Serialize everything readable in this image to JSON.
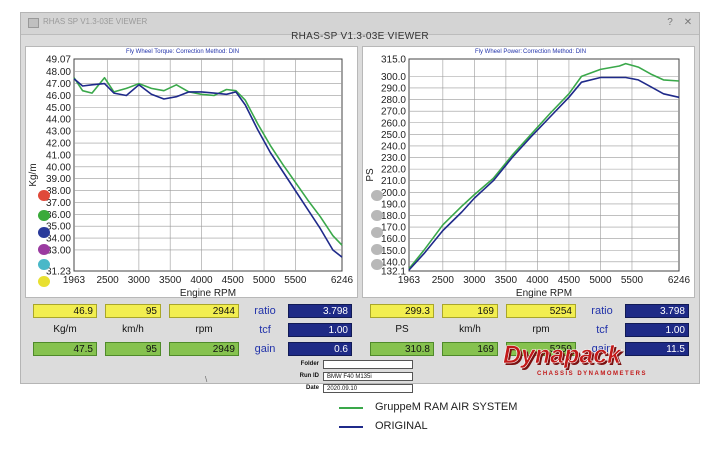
{
  "window": {
    "small_title": "RHAS SP V1.3-03E VIEWER",
    "title": "RHAS-SP V1.3-03E VIEWER",
    "controls": [
      "?",
      "✕"
    ]
  },
  "torque_chart": {
    "subtitle_left": "Fly Wheel Torque:",
    "subtitle_right": "Correction Method: DIN"
  },
  "power_chart": {
    "subtitle_left": "Fly Wheel Power:",
    "subtitle_right": "Correction Method: DIN"
  },
  "chart_data": [
    {
      "type": "line",
      "ylabel": "Kg/m",
      "xlabel": "Engine RPM",
      "xlim": [
        1963,
        6246
      ],
      "ylim": [
        31.23,
        49.07
      ],
      "x_ticks": [
        "1963",
        "2500",
        "3000",
        "3500",
        "4000",
        "4500",
        "5000",
        "5500",
        "6246"
      ],
      "y_ticks": [
        "49.07",
        "48.00",
        "47.00",
        "46.00",
        "45.00",
        "44.00",
        "43.00",
        "42.00",
        "41.00",
        "40.00",
        "39.00",
        "38.00",
        "37.00",
        "36.00",
        "35.00",
        "34.00",
        "33.00",
        "31.23"
      ],
      "grid": true,
      "series": [
        {
          "name": "GruppeM RAM AIR SYSTEM",
          "color": "#3aa84a",
          "x": [
            1963,
            2100,
            2250,
            2450,
            2600,
            2800,
            3000,
            3200,
            3400,
            3600,
            3800,
            4000,
            4200,
            4400,
            4550,
            4700,
            4900,
            5100,
            5300,
            5500,
            5700,
            5900,
            6100,
            6246
          ],
          "y": [
            47.5,
            46.4,
            46.2,
            47.5,
            46.3,
            46.6,
            47.0,
            46.6,
            46.4,
            46.9,
            46.3,
            46.1,
            46.0,
            46.5,
            46.4,
            45.6,
            43.6,
            41.8,
            40.2,
            38.7,
            37.2,
            35.8,
            34.2,
            33.4
          ]
        },
        {
          "name": "ORIGINAL",
          "color": "#1f2a8a",
          "x": [
            1963,
            2100,
            2250,
            2450,
            2600,
            2800,
            3000,
            3200,
            3400,
            3600,
            3800,
            4000,
            4200,
            4400,
            4550,
            4700,
            4900,
            5100,
            5300,
            5500,
            5700,
            5900,
            6100,
            6246
          ],
          "y": [
            47.4,
            46.8,
            46.9,
            47.0,
            46.2,
            46.0,
            46.9,
            46.1,
            45.7,
            45.9,
            46.3,
            46.3,
            46.2,
            46.1,
            46.3,
            45.2,
            43.1,
            41.2,
            39.6,
            38.0,
            36.4,
            34.8,
            33.0,
            32.4
          ]
        }
      ]
    },
    {
      "type": "line",
      "ylabel": "PS",
      "xlabel": "Engine RPM",
      "xlim": [
        1963,
        6246
      ],
      "ylim": [
        132.1,
        315.0
      ],
      "x_ticks": [
        "1963",
        "2500",
        "3000",
        "3500",
        "4000",
        "4500",
        "5000",
        "5500",
        "6246"
      ],
      "y_ticks": [
        "315.0",
        "300.0",
        "290.0",
        "280.0",
        "270.0",
        "260.0",
        "250.0",
        "240.0",
        "230.0",
        "220.0",
        "210.0",
        "200.0",
        "190.0",
        "180.0",
        "170.0",
        "160.0",
        "150.0",
        "140.0",
        "132.1"
      ],
      "grid": true,
      "series": [
        {
          "name": "GruppeM RAM AIR SYSTEM",
          "color": "#3aa84a",
          "x": [
            1963,
            2200,
            2500,
            2800,
            3000,
            3300,
            3600,
            3900,
            4200,
            4500,
            4700,
            5000,
            5300,
            5400,
            5600,
            5800,
            6000,
            6246
          ],
          "y": [
            134,
            150,
            172,
            188,
            198,
            212,
            232,
            250,
            268,
            285,
            300,
            306,
            309,
            311,
            308,
            302,
            297,
            296
          ]
        },
        {
          "name": "ORIGINAL",
          "color": "#1f2a8a",
          "x": [
            1963,
            2200,
            2500,
            2800,
            3000,
            3300,
            3600,
            3900,
            4200,
            4500,
            4700,
            5000,
            5300,
            5400,
            5600,
            5800,
            6000,
            6246
          ],
          "y": [
            133,
            147,
            167,
            183,
            195,
            210,
            230,
            248,
            265,
            282,
            295,
            299,
            299,
            299,
            297,
            291,
            285,
            282
          ]
        }
      ]
    }
  ],
  "torque_readout": {
    "top": [
      "46.9",
      "95",
      "2944"
    ],
    "units": [
      "Kg/m",
      "km/h",
      "rpm"
    ],
    "bottom": [
      "47.5",
      "95",
      "2949"
    ],
    "ratio_label": "ratio",
    "tcf_label": "tcf",
    "gain_label": "gain",
    "ratio_value": "3.798",
    "tcf_value": "1.00",
    "gain_value": "0.6"
  },
  "power_readout": {
    "top": [
      "299.3",
      "169",
      "5254"
    ],
    "units": [
      "PS",
      "km/h",
      "rpm"
    ],
    "bottom": [
      "310.8",
      "169",
      "5259"
    ],
    "ratio_label": "ratio",
    "tcf_label": "tcf",
    "gain_label": "gain",
    "ratio_value": "3.798",
    "tcf_value": "1.00",
    "gain_value": "11.5"
  },
  "info": {
    "folder_label": "Folder",
    "folder_value": "",
    "runid_label": "Run ID",
    "runid_value": "BMW F40 M135i",
    "date_label": "Date",
    "date_value": "2020.09.10"
  },
  "statusbar_mark": "\\",
  "logo": {
    "brand": "Dynapack",
    "tagline": "CHASSIS DYNAMOMETERS",
    "color": "#c21a1a"
  },
  "legend": [
    {
      "label": "GruppeM  RAM AIR SYSTEM",
      "color": "#3aa84a"
    },
    {
      "label": "ORIGINAL",
      "color": "#1f2a8a"
    }
  ],
  "left_dots": [
    "#e04a3a",
    "#3aaa3a",
    "#2a3a9a",
    "#9a3aa0",
    "#4ab8c8",
    "#e8e030"
  ]
}
